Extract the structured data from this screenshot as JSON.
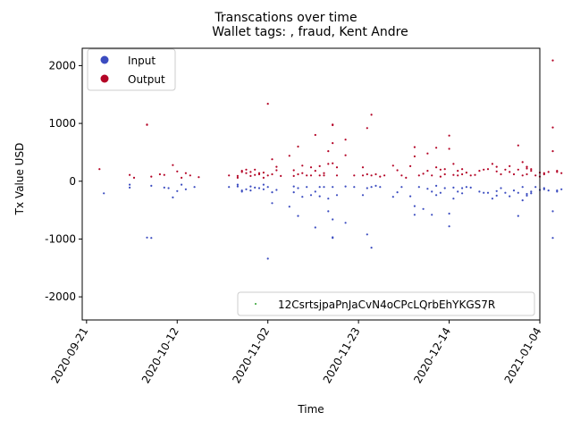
{
  "chart_data": {
    "type": "scatter",
    "title": "Transcations over time",
    "subtitle": "Wallet tags: , fraud, Kent Andre",
    "xlabel": "Time",
    "ylabel": "Tx Value USD",
    "xlim": [
      "2020-09-20",
      "2021-01-04"
    ],
    "ylim": [
      -2400,
      2300
    ],
    "x_ticks": [
      "2020-09-21",
      "2020-10-12",
      "2020-11-02",
      "2020-11-23",
      "2020-12-14",
      "2021-01-04"
    ],
    "y_ticks": [
      -2000,
      -1000,
      0,
      1000,
      2000
    ],
    "grid": false,
    "colors": {
      "input": "#3b4cc0",
      "output": "#b40426",
      "wallet": "#2ca02c"
    },
    "legend_top_left": [
      {
        "label": "Input",
        "color": "#3b4cc0"
      },
      {
        "label": "Output",
        "color": "#b40426"
      }
    ],
    "legend_bottom_right": {
      "label": "12CsrtsjpaPnJaCvN4oCPcLQrbEhYKGS7R",
      "color": "#2ca02c"
    },
    "series": [
      {
        "name": "Output",
        "points": [
          [
            "2020-09-24",
            210
          ],
          [
            "2020-10-01",
            110
          ],
          [
            "2020-10-02",
            60
          ],
          [
            "2020-10-05",
            980
          ],
          [
            "2020-10-05",
            975
          ],
          [
            "2020-10-06",
            80
          ],
          [
            "2020-10-08",
            120
          ],
          [
            "2020-10-09",
            110
          ],
          [
            "2020-10-11",
            280
          ],
          [
            "2020-10-12",
            170
          ],
          [
            "2020-10-13",
            60
          ],
          [
            "2020-10-14",
            140
          ],
          [
            "2020-10-15",
            100
          ],
          [
            "2020-10-17",
            70
          ],
          [
            "2020-10-24",
            100
          ],
          [
            "2020-10-26",
            90
          ],
          [
            "2020-10-26",
            60
          ],
          [
            "2020-10-27",
            180
          ],
          [
            "2020-10-27",
            160
          ],
          [
            "2020-10-28",
            140
          ],
          [
            "2020-10-28",
            200
          ],
          [
            "2020-10-29",
            90
          ],
          [
            "2020-10-29",
            160
          ],
          [
            "2020-10-30",
            110
          ],
          [
            "2020-10-30",
            200
          ],
          [
            "2020-10-31",
            120
          ],
          [
            "2020-10-31",
            140
          ],
          [
            "2020-11-01",
            150
          ],
          [
            "2020-11-01",
            60
          ],
          [
            "2020-11-02",
            100
          ],
          [
            "2020-11-02",
            1340
          ],
          [
            "2020-11-03",
            120
          ],
          [
            "2020-11-03",
            380
          ],
          [
            "2020-11-04",
            190
          ],
          [
            "2020-11-04",
            250
          ],
          [
            "2020-11-05",
            90
          ],
          [
            "2020-11-07",
            440
          ],
          [
            "2020-11-08",
            190
          ],
          [
            "2020-11-08",
            90
          ],
          [
            "2020-11-09",
            600
          ],
          [
            "2020-11-09",
            120
          ],
          [
            "2020-11-10",
            140
          ],
          [
            "2020-11-10",
            270
          ],
          [
            "2020-11-11",
            100
          ],
          [
            "2020-11-12",
            240
          ],
          [
            "2020-11-12",
            100
          ],
          [
            "2020-11-13",
            800
          ],
          [
            "2020-11-13",
            180
          ],
          [
            "2020-11-14",
            260
          ],
          [
            "2020-11-14",
            100
          ],
          [
            "2020-11-15",
            140
          ],
          [
            "2020-11-15",
            100
          ],
          [
            "2020-11-16",
            520
          ],
          [
            "2020-11-16",
            300
          ],
          [
            "2020-11-17",
            980
          ],
          [
            "2020-11-17",
            970
          ],
          [
            "2020-11-17",
            660
          ],
          [
            "2020-11-17",
            310
          ],
          [
            "2020-11-18",
            100
          ],
          [
            "2020-11-18",
            240
          ],
          [
            "2020-11-20",
            450
          ],
          [
            "2020-11-20",
            720
          ],
          [
            "2020-11-22",
            100
          ],
          [
            "2020-11-24",
            240
          ],
          [
            "2020-11-24",
            100
          ],
          [
            "2020-11-25",
            920
          ],
          [
            "2020-11-25",
            120
          ],
          [
            "2020-11-26",
            1150
          ],
          [
            "2020-11-26",
            100
          ],
          [
            "2020-11-27",
            120
          ],
          [
            "2020-11-28",
            80
          ],
          [
            "2020-11-29",
            100
          ],
          [
            "2020-12-01",
            270
          ],
          [
            "2020-12-02",
            190
          ],
          [
            "2020-12-03",
            100
          ],
          [
            "2020-12-04",
            60
          ],
          [
            "2020-12-05",
            260
          ],
          [
            "2020-12-06",
            430
          ],
          [
            "2020-12-06",
            590
          ],
          [
            "2020-12-07",
            100
          ],
          [
            "2020-12-08",
            130
          ],
          [
            "2020-12-09",
            480
          ],
          [
            "2020-12-09",
            180
          ],
          [
            "2020-12-10",
            100
          ],
          [
            "2020-12-11",
            580
          ],
          [
            "2020-12-11",
            240
          ],
          [
            "2020-12-12",
            80
          ],
          [
            "2020-12-12",
            200
          ],
          [
            "2020-12-13",
            210
          ],
          [
            "2020-12-13",
            120
          ],
          [
            "2020-12-14",
            790
          ],
          [
            "2020-12-14",
            560
          ],
          [
            "2020-12-15",
            300
          ],
          [
            "2020-12-15",
            110
          ],
          [
            "2020-12-16",
            180
          ],
          [
            "2020-12-16",
            100
          ],
          [
            "2020-12-17",
            210
          ],
          [
            "2020-12-17",
            120
          ],
          [
            "2020-12-18",
            150
          ],
          [
            "2020-12-19",
            100
          ],
          [
            "2020-12-20",
            110
          ],
          [
            "2020-12-21",
            180
          ],
          [
            "2020-12-22",
            200
          ],
          [
            "2020-12-23",
            210
          ],
          [
            "2020-12-24",
            300
          ],
          [
            "2020-12-25",
            250
          ],
          [
            "2020-12-25",
            170
          ],
          [
            "2020-12-26",
            120
          ],
          [
            "2020-12-27",
            200
          ],
          [
            "2020-12-28",
            260
          ],
          [
            "2020-12-28",
            160
          ],
          [
            "2020-12-29",
            120
          ],
          [
            "2020-12-30",
            620
          ],
          [
            "2020-12-30",
            200
          ],
          [
            "2020-12-31",
            100
          ],
          [
            "2020-12-31",
            330
          ],
          [
            "2021-01-01",
            250
          ],
          [
            "2021-01-01",
            220
          ],
          [
            "2021-01-01",
            120
          ],
          [
            "2021-01-02",
            210
          ],
          [
            "2021-01-02",
            180
          ],
          [
            "2021-01-03",
            100
          ],
          [
            "2021-01-04",
            150
          ],
          [
            "2021-01-04",
            80
          ],
          [
            "2021-01-05",
            140
          ],
          [
            "2021-01-05",
            120
          ],
          [
            "2021-01-06",
            160
          ],
          [
            "2021-01-07",
            520
          ],
          [
            "2021-01-07",
            930
          ],
          [
            "2021-01-07",
            2090
          ],
          [
            "2021-01-08",
            180
          ],
          [
            "2021-01-08",
            160
          ],
          [
            "2021-01-09",
            140
          ]
        ]
      },
      {
        "name": "Input",
        "points": [
          [
            "2020-09-25",
            -210
          ],
          [
            "2020-10-01",
            -110
          ],
          [
            "2020-10-01",
            -60
          ],
          [
            "2020-10-05",
            -975
          ],
          [
            "2020-10-06",
            -980
          ],
          [
            "2020-10-06",
            -80
          ],
          [
            "2020-10-09",
            -110
          ],
          [
            "2020-10-10",
            -120
          ],
          [
            "2020-10-11",
            -280
          ],
          [
            "2020-10-12",
            -170
          ],
          [
            "2020-10-13",
            -60
          ],
          [
            "2020-10-14",
            -140
          ],
          [
            "2020-10-16",
            -100
          ],
          [
            "2020-10-24",
            -100
          ],
          [
            "2020-10-26",
            -90
          ],
          [
            "2020-10-26",
            -60
          ],
          [
            "2020-10-27",
            -180
          ],
          [
            "2020-10-27",
            -160
          ],
          [
            "2020-10-28",
            -140
          ],
          [
            "2020-10-29",
            -90
          ],
          [
            "2020-10-29",
            -160
          ],
          [
            "2020-10-30",
            -110
          ],
          [
            "2020-10-31",
            -120
          ],
          [
            "2020-11-01",
            -140
          ],
          [
            "2020-11-01",
            -60
          ],
          [
            "2020-11-02",
            -1340
          ],
          [
            "2020-11-02",
            -100
          ],
          [
            "2020-11-03",
            -380
          ],
          [
            "2020-11-03",
            -190
          ],
          [
            "2020-11-04",
            -150
          ],
          [
            "2020-11-07",
            -440
          ],
          [
            "2020-11-08",
            -90
          ],
          [
            "2020-11-08",
            -190
          ],
          [
            "2020-11-09",
            -600
          ],
          [
            "2020-11-09",
            -120
          ],
          [
            "2020-11-10",
            -270
          ],
          [
            "2020-11-11",
            -100
          ],
          [
            "2020-11-12",
            -240
          ],
          [
            "2020-11-13",
            -800
          ],
          [
            "2020-11-13",
            -180
          ],
          [
            "2020-11-14",
            -100
          ],
          [
            "2020-11-14",
            -260
          ],
          [
            "2020-11-15",
            -100
          ],
          [
            "2020-11-16",
            -520
          ],
          [
            "2020-11-16",
            -300
          ],
          [
            "2020-11-17",
            -980
          ],
          [
            "2020-11-17",
            -970
          ],
          [
            "2020-11-17",
            -660
          ],
          [
            "2020-11-17",
            -100
          ],
          [
            "2020-11-18",
            -240
          ],
          [
            "2020-11-20",
            -720
          ],
          [
            "2020-11-20",
            -90
          ],
          [
            "2020-11-22",
            -100
          ],
          [
            "2020-11-24",
            -240
          ],
          [
            "2020-11-25",
            -920
          ],
          [
            "2020-11-25",
            -120
          ],
          [
            "2020-11-26",
            -1150
          ],
          [
            "2020-11-26",
            -100
          ],
          [
            "2020-11-27",
            -80
          ],
          [
            "2020-11-28",
            -100
          ],
          [
            "2020-12-01",
            -270
          ],
          [
            "2020-12-02",
            -190
          ],
          [
            "2020-12-03",
            -100
          ],
          [
            "2020-12-05",
            -260
          ],
          [
            "2020-12-06",
            -580
          ],
          [
            "2020-12-06",
            -430
          ],
          [
            "2020-12-07",
            -100
          ],
          [
            "2020-12-08",
            -480
          ],
          [
            "2020-12-09",
            -130
          ],
          [
            "2020-12-10",
            -580
          ],
          [
            "2020-12-10",
            -180
          ],
          [
            "2020-12-11",
            -240
          ],
          [
            "2020-12-11",
            -80
          ],
          [
            "2020-12-12",
            -200
          ],
          [
            "2020-12-13",
            -120
          ],
          [
            "2020-12-14",
            -780
          ],
          [
            "2020-12-14",
            -560
          ],
          [
            "2020-12-15",
            -110
          ],
          [
            "2020-12-15",
            -300
          ],
          [
            "2020-12-16",
            -180
          ],
          [
            "2020-12-17",
            -120
          ],
          [
            "2020-12-17",
            -210
          ],
          [
            "2020-12-18",
            -100
          ],
          [
            "2020-12-19",
            -110
          ],
          [
            "2020-12-21",
            -180
          ],
          [
            "2020-12-22",
            -200
          ],
          [
            "2020-12-23",
            -200
          ],
          [
            "2020-12-24",
            -300
          ],
          [
            "2020-12-25",
            -250
          ],
          [
            "2020-12-25",
            -170
          ],
          [
            "2020-12-26",
            -120
          ],
          [
            "2020-12-27",
            -200
          ],
          [
            "2020-12-28",
            -260
          ],
          [
            "2020-12-29",
            -160
          ],
          [
            "2020-12-30",
            -600
          ],
          [
            "2020-12-30",
            -200
          ],
          [
            "2020-12-31",
            -100
          ],
          [
            "2020-12-31",
            -330
          ],
          [
            "2021-01-01",
            -250
          ],
          [
            "2021-01-01",
            -220
          ],
          [
            "2021-01-02",
            -210
          ],
          [
            "2021-01-02",
            -180
          ],
          [
            "2021-01-03",
            -100
          ],
          [
            "2021-01-04",
            -150
          ],
          [
            "2021-01-05",
            -140
          ],
          [
            "2021-01-05",
            -120
          ],
          [
            "2021-01-06",
            -160
          ],
          [
            "2021-01-07",
            -520
          ],
          [
            "2021-01-07",
            -980
          ],
          [
            "2021-01-08",
            -180
          ],
          [
            "2021-01-08",
            -160
          ],
          [
            "2021-01-09",
            -140
          ]
        ]
      }
    ]
  }
}
